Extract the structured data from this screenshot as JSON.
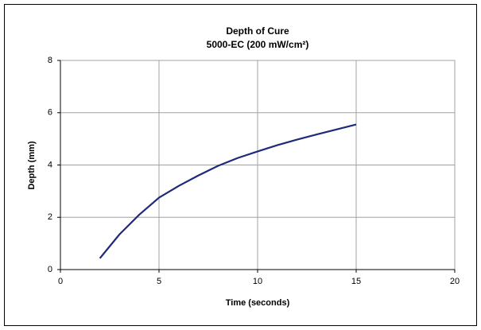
{
  "chart_data": {
    "type": "line",
    "title": "Depth of Cure",
    "subtitle": "5000-EC (200 mW/cm²)",
    "x_label": "Time (seconds)",
    "y_label": "Depth (mm)",
    "x": [
      2,
      3,
      4,
      5,
      6,
      7,
      8,
      9,
      10,
      11,
      12,
      13,
      14,
      15
    ],
    "series": [
      {
        "name": "Depth",
        "color": "#1f2a7a",
        "values": [
          0.43,
          1.35,
          2.1,
          2.75,
          3.2,
          3.6,
          3.97,
          4.27,
          4.52,
          4.76,
          4.97,
          5.17,
          5.36,
          5.55
        ]
      }
    ],
    "xlim": [
      0,
      20
    ],
    "xticks": [
      0,
      5,
      10,
      15,
      20
    ],
    "ylim": [
      0,
      8
    ],
    "yticks": [
      0,
      2,
      4,
      6,
      8
    ],
    "grid": true
  }
}
